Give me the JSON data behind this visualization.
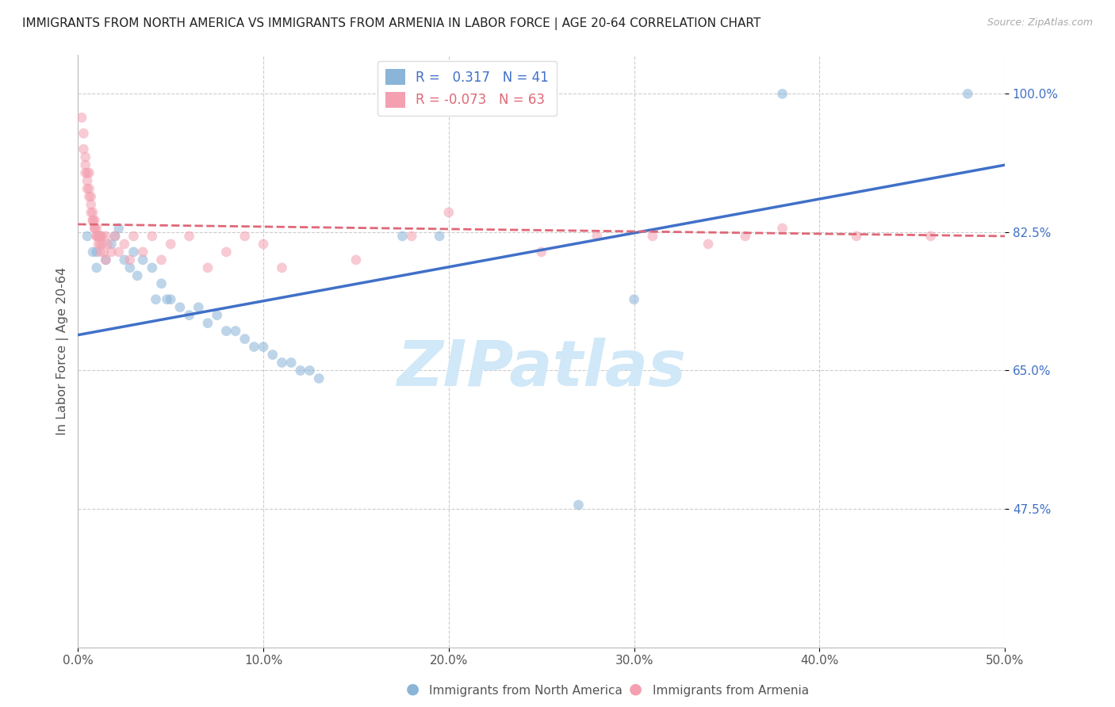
{
  "title": "IMMIGRANTS FROM NORTH AMERICA VS IMMIGRANTS FROM ARMENIA IN LABOR FORCE | AGE 20-64 CORRELATION CHART",
  "source": "Source: ZipAtlas.com",
  "ylabel": "In Labor Force | Age 20-64",
  "xlim": [
    0.0,
    0.5
  ],
  "ylim": [
    0.3,
    1.05
  ],
  "xtick_labels": [
    "0.0%",
    "10.0%",
    "20.0%",
    "30.0%",
    "40.0%",
    "50.0%"
  ],
  "xtick_values": [
    0.0,
    0.1,
    0.2,
    0.3,
    0.4,
    0.5
  ],
  "ytick_labels": [
    "47.5%",
    "65.0%",
    "82.5%",
    "100.0%"
  ],
  "ytick_values": [
    0.475,
    0.65,
    0.825,
    1.0
  ],
  "grid_color": "#cccccc",
  "background_color": "#ffffff",
  "watermark": "ZIPatlas",
  "watermark_color": "#d0e8f8",
  "blue_scatter": [
    [
      0.005,
      0.82
    ],
    [
      0.008,
      0.8
    ],
    [
      0.01,
      0.8
    ],
    [
      0.01,
      0.78
    ],
    [
      0.012,
      0.82
    ],
    [
      0.015,
      0.79
    ],
    [
      0.018,
      0.81
    ],
    [
      0.02,
      0.82
    ],
    [
      0.022,
      0.83
    ],
    [
      0.025,
      0.79
    ],
    [
      0.028,
      0.78
    ],
    [
      0.03,
      0.8
    ],
    [
      0.032,
      0.77
    ],
    [
      0.035,
      0.79
    ],
    [
      0.04,
      0.78
    ],
    [
      0.042,
      0.74
    ],
    [
      0.045,
      0.76
    ],
    [
      0.048,
      0.74
    ],
    [
      0.05,
      0.74
    ],
    [
      0.055,
      0.73
    ],
    [
      0.06,
      0.72
    ],
    [
      0.065,
      0.73
    ],
    [
      0.07,
      0.71
    ],
    [
      0.075,
      0.72
    ],
    [
      0.08,
      0.7
    ],
    [
      0.085,
      0.7
    ],
    [
      0.09,
      0.69
    ],
    [
      0.095,
      0.68
    ],
    [
      0.1,
      0.68
    ],
    [
      0.105,
      0.67
    ],
    [
      0.11,
      0.66
    ],
    [
      0.115,
      0.66
    ],
    [
      0.12,
      0.65
    ],
    [
      0.125,
      0.65
    ],
    [
      0.13,
      0.64
    ],
    [
      0.175,
      0.82
    ],
    [
      0.195,
      0.82
    ],
    [
      0.27,
      0.48
    ],
    [
      0.3,
      0.74
    ],
    [
      0.38,
      1.0
    ],
    [
      0.48,
      1.0
    ]
  ],
  "pink_scatter": [
    [
      0.002,
      0.97
    ],
    [
      0.003,
      0.95
    ],
    [
      0.003,
      0.93
    ],
    [
      0.004,
      0.92
    ],
    [
      0.004,
      0.91
    ],
    [
      0.004,
      0.9
    ],
    [
      0.005,
      0.9
    ],
    [
      0.005,
      0.89
    ],
    [
      0.005,
      0.88
    ],
    [
      0.006,
      0.9
    ],
    [
      0.006,
      0.88
    ],
    [
      0.006,
      0.87
    ],
    [
      0.007,
      0.87
    ],
    [
      0.007,
      0.86
    ],
    [
      0.007,
      0.85
    ],
    [
      0.008,
      0.85
    ],
    [
      0.008,
      0.84
    ],
    [
      0.008,
      0.84
    ],
    [
      0.009,
      0.84
    ],
    [
      0.009,
      0.83
    ],
    [
      0.009,
      0.83
    ],
    [
      0.01,
      0.83
    ],
    [
      0.01,
      0.82
    ],
    [
      0.01,
      0.82
    ],
    [
      0.011,
      0.82
    ],
    [
      0.011,
      0.82
    ],
    [
      0.011,
      0.81
    ],
    [
      0.012,
      0.82
    ],
    [
      0.012,
      0.81
    ],
    [
      0.012,
      0.8
    ],
    [
      0.013,
      0.82
    ],
    [
      0.013,
      0.81
    ],
    [
      0.014,
      0.8
    ],
    [
      0.015,
      0.82
    ],
    [
      0.015,
      0.79
    ],
    [
      0.016,
      0.81
    ],
    [
      0.018,
      0.8
    ],
    [
      0.02,
      0.82
    ],
    [
      0.022,
      0.8
    ],
    [
      0.025,
      0.81
    ],
    [
      0.028,
      0.79
    ],
    [
      0.03,
      0.82
    ],
    [
      0.035,
      0.8
    ],
    [
      0.04,
      0.82
    ],
    [
      0.045,
      0.79
    ],
    [
      0.05,
      0.81
    ],
    [
      0.06,
      0.82
    ],
    [
      0.07,
      0.78
    ],
    [
      0.08,
      0.8
    ],
    [
      0.09,
      0.82
    ],
    [
      0.1,
      0.81
    ],
    [
      0.11,
      0.78
    ],
    [
      0.15,
      0.79
    ],
    [
      0.18,
      0.82
    ],
    [
      0.2,
      0.85
    ],
    [
      0.25,
      0.8
    ],
    [
      0.28,
      0.82
    ],
    [
      0.31,
      0.82
    ],
    [
      0.34,
      0.81
    ],
    [
      0.36,
      0.82
    ],
    [
      0.38,
      0.83
    ],
    [
      0.42,
      0.82
    ],
    [
      0.46,
      0.82
    ]
  ],
  "blue_line": [
    [
      0.0,
      0.695
    ],
    [
      0.5,
      0.91
    ]
  ],
  "pink_line": [
    [
      0.0,
      0.835
    ],
    [
      0.5,
      0.82
    ]
  ],
  "blue_color": "#8ab4d8",
  "pink_color": "#f4a0b0",
  "blue_line_color": "#4070c8",
  "pink_line_color": "#e06878",
  "scatter_size": 85,
  "scatter_alpha": 0.55,
  "legend_label1": "R =   0.317   N = 41",
  "legend_label2": "R = -0.073   N = 63",
  "footer_label1": "Immigrants from North America",
  "footer_label2": "Immigrants from Armenia"
}
